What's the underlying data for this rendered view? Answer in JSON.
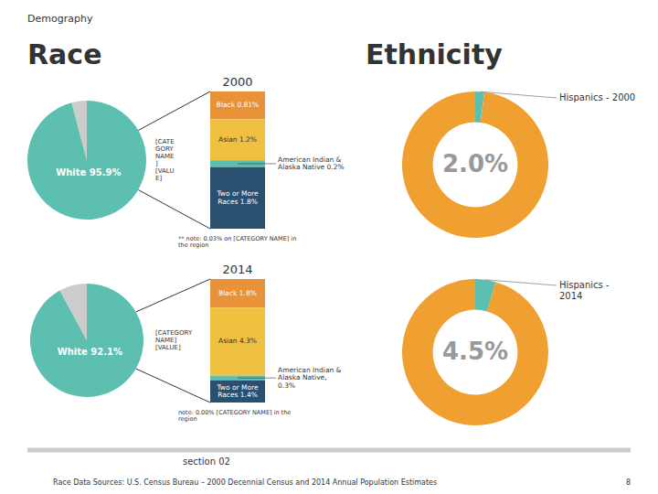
{
  "chart_data": [
    {
      "type": "pie",
      "values": [
        95.9,
        4.1
      ],
      "colors": [
        "#5dbfb0",
        "#cccccc"
      ],
      "value_labels": [
        "White 95.9%",
        null
      ],
      "data_labels": true
    },
    {
      "type": "bar",
      "stacked": true,
      "title": "2000",
      "series": [
        {
          "color": "#e8923a",
          "values": [
            0.81
          ],
          "value_labels": [
            "Black 0.81%"
          ]
        },
        {
          "color": "#f0c040",
          "values": [
            1.2
          ],
          "value_labels": [
            "Asian 1.2%"
          ]
        },
        {
          "color": "#5dbfb0",
          "values": [
            0.2
          ],
          "value_labels": [
            "American Indian &\nAlaska Native 0.2%"
          ]
        },
        {
          "color": "#2a5070",
          "values": [
            1.8
          ],
          "value_labels": [
            "Two or More\nRaces 1.8%"
          ]
        }
      ],
      "ylim": [
        0,
        4.01
      ],
      "tick_labels": false,
      "data_labels": true,
      "annotations": [
        "** note: 0.03% on [CATEGORY NAME] in\nthe region",
        "[CATE\nGORY\nNAME\n]\n[VALU\nE]"
      ]
    },
    {
      "type": "pie",
      "values": [
        92.1,
        7.9
      ],
      "colors": [
        "#5dbfb0",
        "#cccccc"
      ],
      "value_labels": [
        "White 92.1%",
        null
      ],
      "data_labels": true
    },
    {
      "type": "bar",
      "stacked": true,
      "title": "2014",
      "series": [
        {
          "color": "#e8923a",
          "values": [
            1.8
          ],
          "value_labels": [
            "Black 1.8%"
          ]
        },
        {
          "color": "#f0c040",
          "values": [
            4.3
          ],
          "value_labels": [
            "Asian 4.3%"
          ]
        },
        {
          "color": "#5dbfb0",
          "values": [
            0.3
          ],
          "value_labels": [
            "American Indian &\nAlaska Native,\n0.3%"
          ]
        },
        {
          "color": "#2a5070",
          "values": [
            1.4
          ],
          "value_labels": [
            "Two or More\nRaces 1.4%"
          ]
        }
      ],
      "ylim": [
        0,
        7.8
      ],
      "tick_labels": false,
      "data_labels": true,
      "annotations": [
        "note: 0.00% [CATEGORY NAME] in the\nregion",
        "[CATEGORY\nNAME]\n[VALUE]"
      ]
    },
    {
      "type": "donut",
      "categories": [
        "Hispanics - 2000",
        null
      ],
      "values": [
        2.0,
        98.0
      ],
      "colors": [
        "#5dbfb0",
        "#f0a030"
      ],
      "value_labels": [
        "2.0%",
        null
      ],
      "data_labels": true
    },
    {
      "type": "donut",
      "categories": [
        "Hispanics -\n2014",
        null
      ],
      "values": [
        4.5,
        95.5
      ],
      "colors": [
        "#5dbfb0",
        "#f0a030"
      ],
      "value_labels": [
        "4.5%",
        null
      ],
      "data_labels": true
    }
  ],
  "annotations": [
    "Demography",
    "Race",
    "Ethnicity",
    "section 02",
    "Race Data Sources: U.S. Census Bureau – 2000 Decennial Census and 2014 Annual Population Estimates",
    "8"
  ]
}
